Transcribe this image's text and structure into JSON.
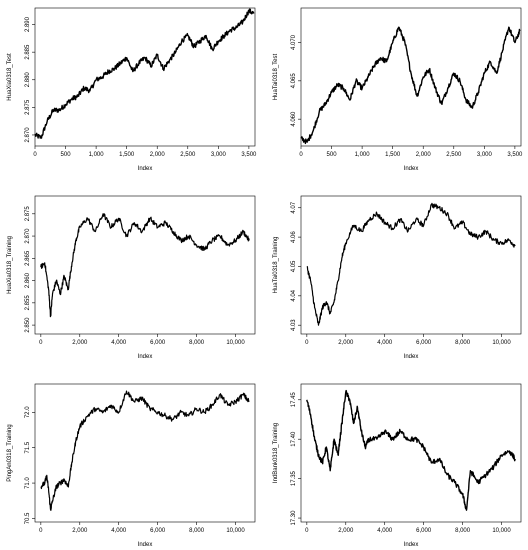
{
  "figure": {
    "panels": [
      {
        "id": "p1",
        "ylabel": "HuaXia0318_Test",
        "xlabel": "Index"
      },
      {
        "id": "p2",
        "ylabel": "HuaTai0318_Test",
        "xlabel": "Index"
      },
      {
        "id": "p3",
        "ylabel": "HuaXia0318_Training",
        "xlabel": "Index"
      },
      {
        "id": "p4",
        "ylabel": "HuaTai0318_Training",
        "xlabel": "Index"
      },
      {
        "id": "p5",
        "ylabel": "PingAn0318_Training",
        "xlabel": "Index"
      },
      {
        "id": "p6",
        "ylabel": "IndBank0318_Training",
        "xlabel": "Index"
      }
    ]
  },
  "chart_data": [
    {
      "type": "line",
      "title": "",
      "xlabel": "Index",
      "ylabel": "HuaXia0318_Test",
      "xlim": [
        0,
        3600
      ],
      "ylim": [
        2.868,
        2.893
      ],
      "xticks": [
        0,
        500,
        1000,
        1500,
        2000,
        2500,
        3000,
        3500
      ],
      "xtick_labels": [
        "0",
        "500",
        "1,000",
        "1,500",
        "2,000",
        "2,500",
        "3,000",
        "3,500"
      ],
      "yticks": [
        2.87,
        2.875,
        2.88,
        2.885,
        2.89
      ],
      "ytick_labels": [
        "2.870",
        "2.875",
        "2.880",
        "2.885",
        "2.890"
      ],
      "series": [
        {
          "x": [
            0,
            100,
            200,
            300,
            400,
            500,
            600,
            700,
            800,
            900,
            1000,
            1100,
            1200,
            1300,
            1400,
            1500,
            1600,
            1700,
            1800,
            1900,
            2000,
            2100,
            2200,
            2300,
            2400,
            2500,
            2600,
            2700,
            2800,
            2900,
            3000,
            3100,
            3200,
            3300,
            3400,
            3500,
            3580
          ],
          "y": [
            2.87,
            2.8695,
            2.8725,
            2.8745,
            2.8745,
            2.8755,
            2.8765,
            2.877,
            2.8785,
            2.878,
            2.88,
            2.8805,
            2.8815,
            2.882,
            2.883,
            2.884,
            2.8815,
            2.883,
            2.884,
            2.8825,
            2.8845,
            2.882,
            2.8835,
            2.885,
            2.887,
            2.888,
            2.886,
            2.887,
            2.888,
            2.8855,
            2.887,
            2.888,
            2.889,
            2.8895,
            2.8905,
            2.8925,
            2.892
          ]
        }
      ]
    },
    {
      "type": "line",
      "title": "",
      "xlabel": "Index",
      "ylabel": "HuaTai0318_Test",
      "xlim": [
        0,
        3600
      ],
      "ylim": [
        4.0565,
        4.0745
      ],
      "xticks": [
        0,
        500,
        1000,
        1500,
        2000,
        2500,
        3000,
        3500
      ],
      "xtick_labels": [
        "0",
        "500",
        "1,000",
        "1,500",
        "2,000",
        "2,500",
        "3,000",
        "3,500"
      ],
      "yticks": [
        4.06,
        4.065,
        4.07
      ],
      "ytick_labels": [
        "4.060",
        "4.065",
        "4.070"
      ],
      "series": [
        {
          "x": [
            0,
            100,
            200,
            300,
            400,
            500,
            600,
            700,
            800,
            900,
            1000,
            1100,
            1200,
            1300,
            1400,
            1500,
            1600,
            1700,
            1800,
            1900,
            2000,
            2100,
            2200,
            2300,
            2400,
            2500,
            2600,
            2700,
            2800,
            2900,
            3000,
            3100,
            3200,
            3300,
            3400,
            3500,
            3580
          ],
          "y": [
            4.0575,
            4.057,
            4.0585,
            4.061,
            4.062,
            4.0635,
            4.0645,
            4.064,
            4.0625,
            4.065,
            4.064,
            4.0655,
            4.067,
            4.068,
            4.0675,
            4.07,
            4.072,
            4.07,
            4.066,
            4.063,
            4.0655,
            4.0665,
            4.064,
            4.062,
            4.064,
            4.066,
            4.065,
            4.0625,
            4.0615,
            4.0635,
            4.066,
            4.0675,
            4.066,
            4.069,
            4.072,
            4.07,
            4.0715
          ]
        }
      ]
    },
    {
      "type": "line",
      "title": "",
      "xlabel": "Index",
      "ylabel": "HuaXia0318_Training",
      "xlim": [
        -300,
        11000
      ],
      "ylim": [
        2.848,
        2.879
      ],
      "xticks": [
        0,
        2000,
        4000,
        6000,
        8000,
        10000
      ],
      "xtick_labels": [
        "0",
        "2,000",
        "4,000",
        "6,000",
        "8,000",
        "10,000"
      ],
      "yticks": [
        2.85,
        2.855,
        2.86,
        2.865,
        2.87,
        2.875
      ],
      "ytick_labels": [
        "2.850",
        "2.855",
        "2.860",
        "2.865",
        "2.870",
        "2.875"
      ],
      "series": [
        {
          "x": [
            0,
            200,
            400,
            500,
            600,
            800,
            1000,
            1200,
            1400,
            1600,
            1800,
            2000,
            2400,
            2800,
            3200,
            3600,
            4000,
            4400,
            4800,
            5200,
            5600,
            6000,
            6400,
            6800,
            7200,
            7600,
            8000,
            8400,
            8800,
            9200,
            9600,
            10000,
            10400,
            10700
          ],
          "y": [
            2.863,
            2.864,
            2.858,
            2.852,
            2.857,
            2.86,
            2.857,
            2.861,
            2.858,
            2.864,
            2.869,
            2.872,
            2.874,
            2.871,
            2.875,
            2.872,
            2.874,
            2.87,
            2.873,
            2.871,
            2.874,
            2.872,
            2.873,
            2.871,
            2.869,
            2.87,
            2.868,
            2.867,
            2.869,
            2.87,
            2.868,
            2.869,
            2.871,
            2.869
          ]
        }
      ]
    },
    {
      "type": "line",
      "title": "",
      "xlabel": "Index",
      "ylabel": "HuaTai0318_Training",
      "xlim": [
        -300,
        11000
      ],
      "ylim": [
        4.027,
        4.074
      ],
      "xticks": [
        0,
        2000,
        4000,
        6000,
        8000,
        10000
      ],
      "xtick_labels": [
        "0",
        "2,000",
        "4,000",
        "6,000",
        "8,000",
        "10,000"
      ],
      "yticks": [
        4.03,
        4.04,
        4.05,
        4.06,
        4.07
      ],
      "ytick_labels": [
        "4.03",
        "4.04",
        "4.05",
        "4.06",
        "4.07"
      ],
      "series": [
        {
          "x": [
            0,
            200,
            400,
            600,
            800,
            1000,
            1200,
            1400,
            1600,
            1800,
            2000,
            2400,
            2800,
            3200,
            3600,
            4000,
            4400,
            4800,
            5200,
            5600,
            6000,
            6400,
            6800,
            7200,
            7600,
            8000,
            8400,
            8800,
            9200,
            9600,
            10000,
            10400,
            10700
          ],
          "y": [
            4.05,
            4.045,
            4.036,
            4.03,
            4.036,
            4.038,
            4.034,
            4.038,
            4.045,
            4.053,
            4.058,
            4.064,
            4.062,
            4.066,
            4.068,
            4.065,
            4.063,
            4.066,
            4.062,
            4.066,
            4.064,
            4.071,
            4.07,
            4.068,
            4.063,
            4.065,
            4.061,
            4.06,
            4.062,
            4.059,
            4.058,
            4.059,
            4.057
          ]
        }
      ]
    },
    {
      "type": "line",
      "title": "",
      "xlabel": "Index",
      "ylabel": "PingAn0318_Training",
      "xlim": [
        -300,
        11000
      ],
      "ylim": [
        70.45,
        72.4
      ],
      "xticks": [
        0,
        2000,
        4000,
        6000,
        8000,
        10000
      ],
      "xtick_labels": [
        "0",
        "2,000",
        "4,000",
        "6,000",
        "8,000",
        "10,000"
      ],
      "yticks": [
        70.5,
        71.0,
        71.5,
        72.0
      ],
      "ytick_labels": [
        "70.5",
        "71.0",
        "71.5",
        "72.0"
      ],
      "series": [
        {
          "x": [
            0,
            200,
            300,
            400,
            500,
            600,
            800,
            1000,
            1200,
            1400,
            1600,
            1800,
            2000,
            2400,
            2800,
            3200,
            3600,
            4000,
            4400,
            4800,
            5200,
            5600,
            6000,
            6400,
            6800,
            7200,
            7600,
            8000,
            8400,
            8800,
            9200,
            9600,
            10000,
            10400,
            10700
          ],
          "y": [
            70.95,
            71.0,
            71.1,
            70.9,
            70.62,
            70.75,
            70.95,
            71.0,
            71.05,
            70.95,
            71.3,
            71.6,
            71.8,
            71.95,
            72.05,
            72.0,
            72.1,
            72.0,
            72.3,
            72.15,
            72.2,
            72.05,
            72.0,
            71.95,
            71.9,
            72.0,
            71.95,
            72.05,
            72.0,
            72.1,
            72.25,
            72.1,
            72.15,
            72.25,
            72.15
          ]
        }
      ]
    },
    {
      "type": "line",
      "title": "",
      "xlabel": "Index",
      "ylabel": "IndBank0318_Training",
      "xlim": [
        -300,
        11000
      ],
      "ylim": [
        17.295,
        17.47
      ],
      "xticks": [
        0,
        2000,
        4000,
        6000,
        8000,
        10000
      ],
      "xtick_labels": [
        "0",
        "2,000",
        "4,000",
        "6,000",
        "8,000",
        "10,000"
      ],
      "yticks": [
        17.3,
        17.35,
        17.4,
        17.45
      ],
      "ytick_labels": [
        "17.30",
        "17.35",
        "17.40",
        "17.45"
      ],
      "series": [
        {
          "x": [
            0,
            200,
            400,
            600,
            800,
            1000,
            1200,
            1400,
            1600,
            1800,
            2000,
            2200,
            2400,
            2600,
            2800,
            3000,
            3200,
            3600,
            4000,
            4400,
            4800,
            5200,
            5600,
            6000,
            6400,
            6800,
            7200,
            7600,
            8000,
            8200,
            8400,
            8800,
            9200,
            9600,
            10000,
            10400,
            10700
          ],
          "y": [
            17.45,
            17.43,
            17.4,
            17.38,
            17.37,
            17.39,
            17.36,
            17.4,
            17.38,
            17.42,
            17.46,
            17.45,
            17.42,
            17.44,
            17.41,
            17.39,
            17.4,
            17.4,
            17.41,
            17.4,
            17.41,
            17.4,
            17.4,
            17.39,
            17.37,
            17.375,
            17.355,
            17.345,
            17.33,
            17.31,
            17.36,
            17.345,
            17.355,
            17.365,
            17.38,
            17.385,
            17.375
          ]
        }
      ]
    }
  ]
}
